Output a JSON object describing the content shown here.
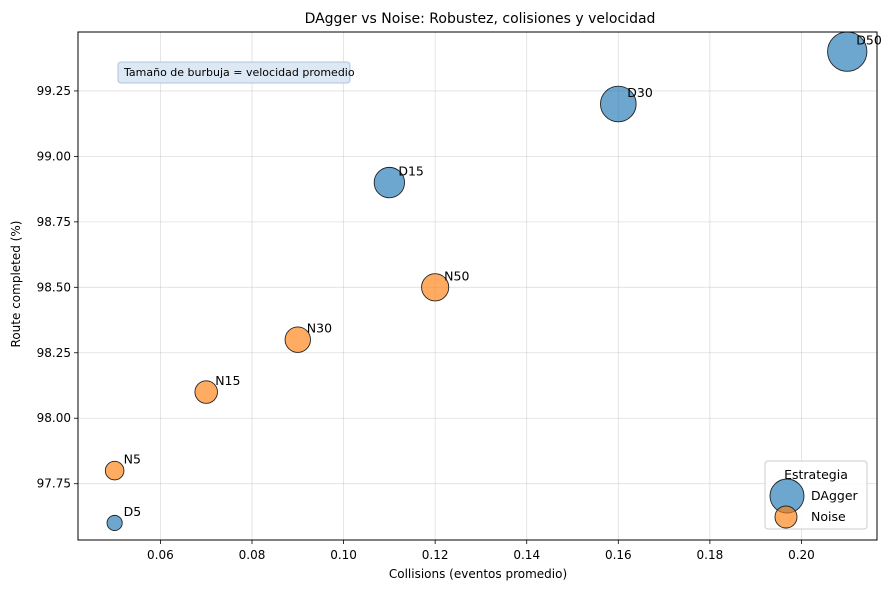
{
  "chart_data": {
    "type": "scatter",
    "title": "DAgger vs Noise: Robustez, colisiones y velocidad",
    "xlabel": "Collisions (eventos promedio)",
    "ylabel": "Route completed (%)",
    "xlim": [
      0.042,
      0.2165
    ],
    "ylim": [
      97.535,
      99.475
    ],
    "xticks": [
      "0.06",
      "0.08",
      "0.10",
      "0.12",
      "0.14",
      "0.16",
      "0.18",
      "0.20"
    ],
    "yticks": [
      "97.75",
      "98.00",
      "98.25",
      "98.50",
      "98.75",
      "99.00",
      "99.25"
    ],
    "grid": true,
    "annotation": "Tamaño de burbuja = velocidad promedio",
    "legend": {
      "title": "Estrategia",
      "placement": "bottom-right"
    },
    "series": [
      {
        "name": "DAgger",
        "color": "#1f77b4",
        "points": [
          {
            "label": "D5",
            "x": 0.05,
            "y": 97.6,
            "size": 1
          },
          {
            "label": "D15",
            "x": 0.11,
            "y": 98.9,
            "size": 4
          },
          {
            "label": "D30",
            "x": 0.16,
            "y": 99.2,
            "size": 5.5
          },
          {
            "label": "D50",
            "x": 0.21,
            "y": 99.4,
            "size": 6.7
          }
        ]
      },
      {
        "name": "Noise",
        "color": "#ff7f0e",
        "points": [
          {
            "label": "N5",
            "x": 0.05,
            "y": 97.8,
            "size": 1.5
          },
          {
            "label": "N15",
            "x": 0.07,
            "y": 98.1,
            "size": 2.2
          },
          {
            "label": "N30",
            "x": 0.09,
            "y": 98.3,
            "size": 2.8
          },
          {
            "label": "N50",
            "x": 0.12,
            "y": 98.5,
            "size": 3.2
          }
        ]
      }
    ]
  }
}
